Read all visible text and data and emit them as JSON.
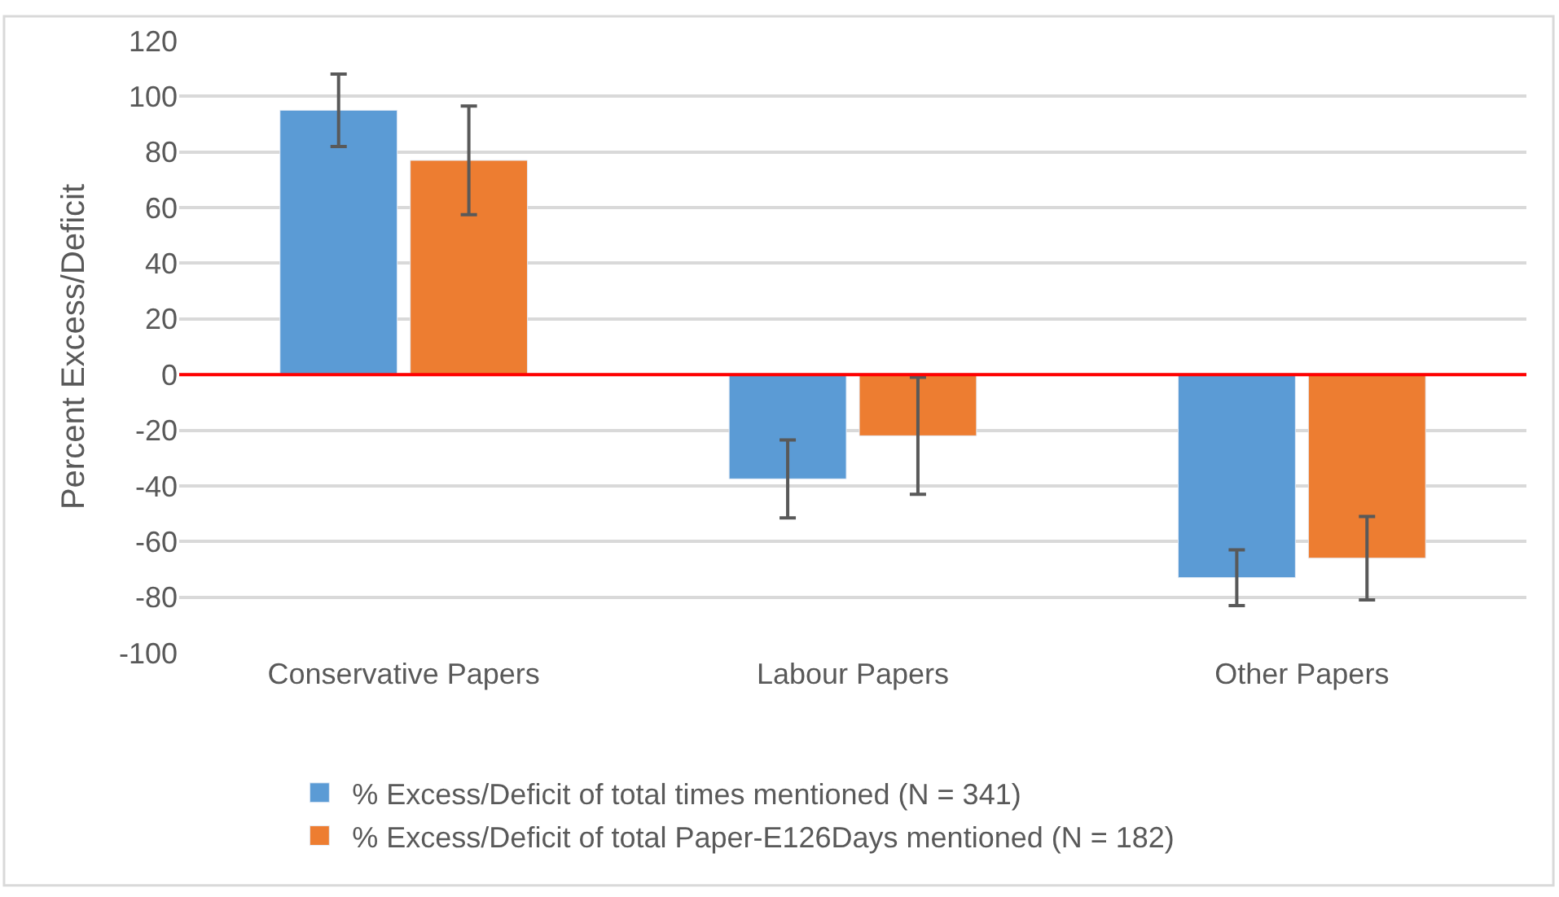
{
  "chart_data": {
    "type": "bar",
    "ylabel": "Percent Excess/Deficit",
    "categories": [
      "Conservative Papers",
      "Labour Papers",
      "Other Papers"
    ],
    "series": [
      {
        "name": "% Excess/Deficit of total times mentioned (N = 341)",
        "color": "#5b9bd5",
        "values": [
          95,
          -37.5,
          -73
        ],
        "errors": [
          13,
          14,
          10
        ]
      },
      {
        "name": "% Excess/Deficit of total Paper-E126Days mentioned (N = 182)",
        "color": "#ed7d31",
        "values": [
          77,
          -22,
          -66
        ],
        "errors": [
          19.5,
          21,
          15
        ]
      }
    ],
    "ylim": [
      -100,
      120
    ],
    "yticks": [
      -100,
      -80,
      -60,
      -40,
      -20,
      0,
      20,
      40,
      60,
      80,
      100,
      120
    ],
    "grid": "y",
    "legend": "bottom",
    "ref_lines": [
      {
        "axis": "y",
        "value": 0,
        "color": "#ff0000"
      }
    ]
  }
}
